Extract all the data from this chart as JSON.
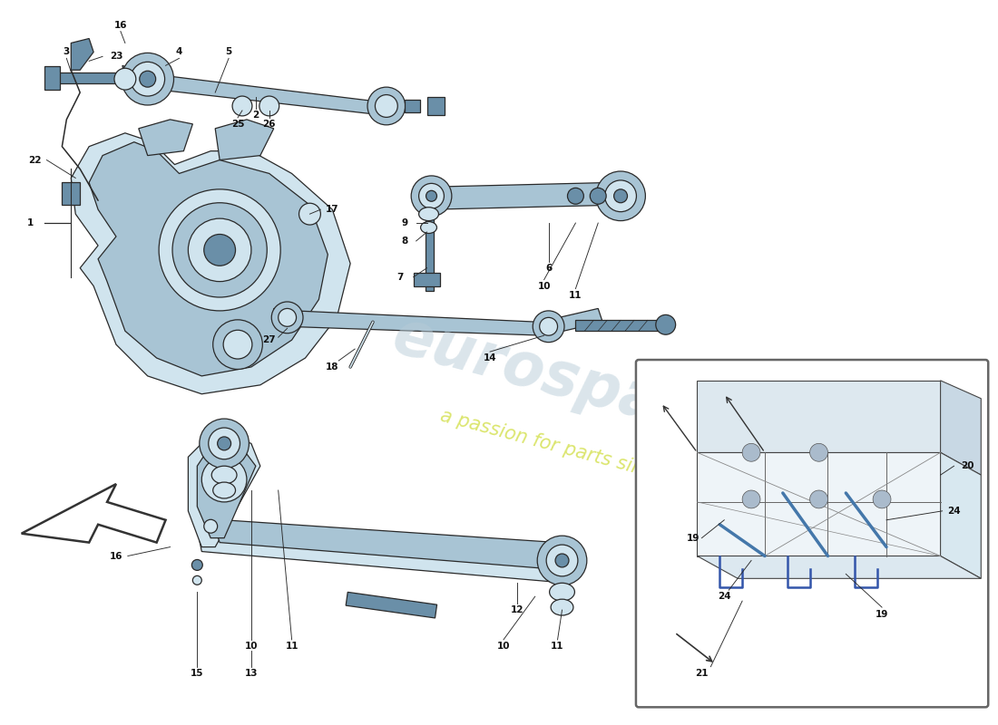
{
  "bg_color": "#ffffff",
  "part_color_main": "#a8c4d4",
  "part_color_dark": "#6a8fa8",
  "part_color_light": "#d0e4ee",
  "line_color": "#2a2a2a",
  "label_color": "#111111",
  "watermark_color_main": "#b8ccd8",
  "watermark_color_sub": "#c8d820",
  "figsize": [
    11.0,
    8.0
  ],
  "dpi": 100
}
